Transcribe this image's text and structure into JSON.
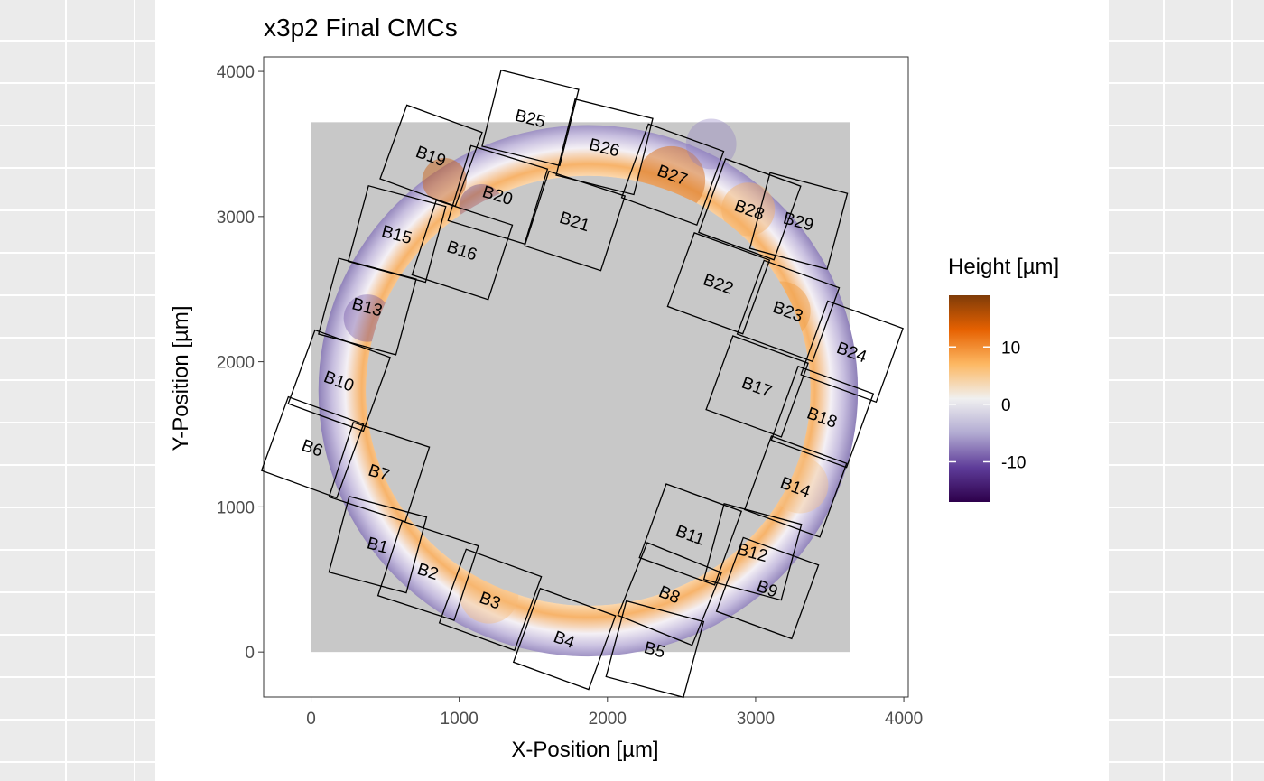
{
  "chart_data": {
    "type": "heatmap",
    "title": "x3p2 Final CMCs",
    "xlabel": "X-Position [µm]",
    "ylabel": "Y-Position [µm]",
    "xlim": [
      -320,
      4030
    ],
    "ylim": [
      -310,
      4100
    ],
    "x_ticks": [
      0,
      1000,
      2000,
      3000,
      4000
    ],
    "y_ticks": [
      0,
      1000,
      2000,
      3000,
      4000
    ],
    "x_tick_labels": [
      "0",
      "1000",
      "2000",
      "3000",
      "4000"
    ],
    "y_tick_labels": [
      "0",
      "1000",
      "2000",
      "3000",
      "4000"
    ],
    "grid": false,
    "scan_region": {
      "x": [
        0,
        3640
      ],
      "y": [
        0,
        3650
      ],
      "fill": "#c8c8c8"
    },
    "surface": {
      "center": [
        1870,
        1800
      ],
      "outer_radius": [
        1820,
        1830
      ],
      "inner_radius": [
        1500,
        1480
      ],
      "description_values": "height field of breech-face annulus"
    },
    "legend": {
      "title": "Height [µm]",
      "position": "right",
      "range": [
        -17,
        19
      ],
      "ticks": [
        10,
        0,
        -10
      ],
      "tick_labels": [
        "10",
        "0",
        "-10"
      ],
      "colors": [
        "#2d004b",
        "#5e3c99",
        "#b2abd2",
        "#f0f0f0",
        "#fdb863",
        "#e66101",
        "#7f3b08"
      ]
    },
    "cells": [
      {
        "label": "B1",
        "cx": 450,
        "cy": 740,
        "angle": -15
      },
      {
        "label": "B2",
        "cx": 790,
        "cy": 560,
        "angle": -18
      },
      {
        "label": "B3",
        "cx": 1210,
        "cy": 360,
        "angle": -20
      },
      {
        "label": "B4",
        "cx": 1710,
        "cy": 90,
        "angle": -20
      },
      {
        "label": "B5",
        "cx": 2320,
        "cy": 20,
        "angle": -15
      },
      {
        "label": "B6",
        "cx": 10,
        "cy": 1410,
        "angle": -20
      },
      {
        "label": "B7",
        "cx": 460,
        "cy": 1240,
        "angle": -18
      },
      {
        "label": "B8",
        "cx": 2420,
        "cy": 400,
        "angle": -22
      },
      {
        "label": "B9",
        "cx": 3080,
        "cy": 440,
        "angle": -20
      },
      {
        "label": "B10",
        "cx": 190,
        "cy": 1870,
        "angle": -20
      },
      {
        "label": "B11",
        "cx": 2560,
        "cy": 810,
        "angle": -20
      },
      {
        "label": "B12",
        "cx": 2980,
        "cy": 690,
        "angle": -15
      },
      {
        "label": "B13",
        "cx": 380,
        "cy": 2380,
        "angle": -15
      },
      {
        "label": "B14",
        "cx": 3270,
        "cy": 1140,
        "angle": -20
      },
      {
        "label": "B15",
        "cx": 580,
        "cy": 2880,
        "angle": -15
      },
      {
        "label": "B16",
        "cx": 1020,
        "cy": 2770,
        "angle": -18
      },
      {
        "label": "B17",
        "cx": 3010,
        "cy": 1830,
        "angle": -20
      },
      {
        "label": "B18",
        "cx": 3450,
        "cy": 1620,
        "angle": -20
      },
      {
        "label": "B19",
        "cx": 810,
        "cy": 3420,
        "angle": -20
      },
      {
        "label": "B20",
        "cx": 1260,
        "cy": 3150,
        "angle": -17
      },
      {
        "label": "B21",
        "cx": 1780,
        "cy": 2970,
        "angle": -18
      },
      {
        "label": "B22",
        "cx": 2750,
        "cy": 2540,
        "angle": -20
      },
      {
        "label": "B23",
        "cx": 3220,
        "cy": 2350,
        "angle": -20
      },
      {
        "label": "B24",
        "cx": 3650,
        "cy": 2070,
        "angle": -20
      },
      {
        "label": "B25",
        "cx": 1480,
        "cy": 3680,
        "angle": -14
      },
      {
        "label": "B26",
        "cx": 1980,
        "cy": 3480,
        "angle": -14
      },
      {
        "label": "B27",
        "cx": 2440,
        "cy": 3290,
        "angle": -20
      },
      {
        "label": "B28",
        "cx": 2960,
        "cy": 3050,
        "angle": -20
      },
      {
        "label": "B29",
        "cx": 3290,
        "cy": 2970,
        "angle": -15
      }
    ]
  }
}
